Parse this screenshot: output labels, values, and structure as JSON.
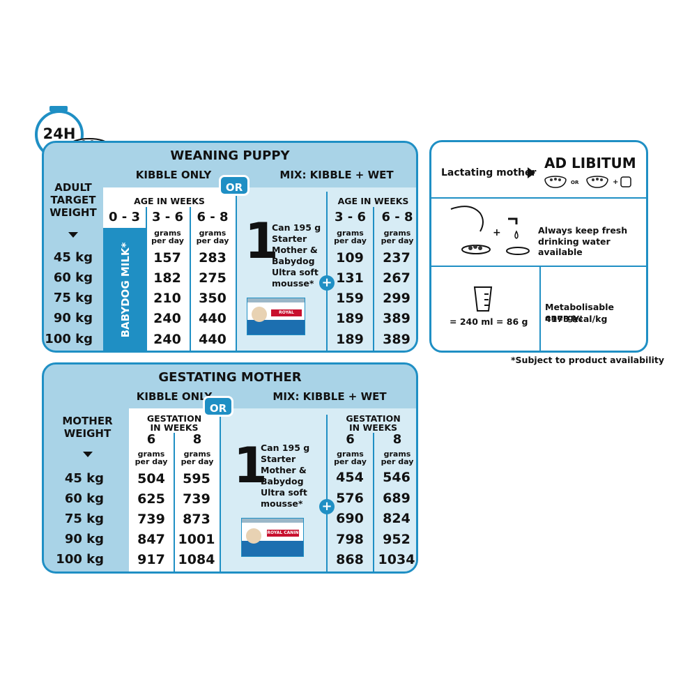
{
  "badge": {
    "label": "24H"
  },
  "weaning": {
    "title": "WEANING PUPPY",
    "kibble_only": "KIBBLE ONLY",
    "or": "OR",
    "mix": "MIX: KIBBLE + WET",
    "side_header": [
      "ADULT",
      "TARGET",
      "WEIGHT"
    ],
    "age_header": "AGE IN WEEKS",
    "age_cols": [
      "0 - 3",
      "3 - 6",
      "6 - 8"
    ],
    "mix_age_cols": [
      "3 - 6",
      "6 - 8"
    ],
    "unit": [
      "grams",
      "per day"
    ],
    "babydog": "BABYDOG MILK*",
    "can_count": "1",
    "can_text": [
      "Can 195 g",
      "Starter",
      "Mother &",
      "Babydog",
      "Ultra soft",
      "mousse*"
    ],
    "plus": "+",
    "rows": [
      {
        "weight": "45 kg",
        "k36": "157",
        "k68": "283",
        "m36": "109",
        "m68": "237"
      },
      {
        "weight": "60 kg",
        "k36": "182",
        "k68": "275",
        "m36": "131",
        "m68": "267"
      },
      {
        "weight": "75 kg",
        "k36": "210",
        "k68": "350",
        "m36": "159",
        "m68": "299"
      },
      {
        "weight": "90 kg",
        "k36": "240",
        "k68": "440",
        "m36": "189",
        "m68": "389"
      },
      {
        "weight": "100 kg",
        "k36": "240",
        "k68": "440",
        "m36": "189",
        "m68": "389"
      }
    ],
    "can_logo": "ROYAL CANIN"
  },
  "gestating": {
    "title": "GESTATING MOTHER",
    "kibble_only": "KIBBLE ONLY",
    "or": "OR",
    "mix": "MIX: KIBBLE + WET",
    "side_header": [
      "MOTHER",
      "WEIGHT"
    ],
    "gest_header": [
      "GESTATION",
      "IN WEEKS"
    ],
    "cols": [
      "6",
      "8"
    ],
    "unit": [
      "grams",
      "per day"
    ],
    "can_count": "1",
    "can_text": [
      "Can 195 g",
      "Starter",
      "Mother &",
      "Babydog",
      "Ultra soft",
      "mousse*"
    ],
    "plus": "+",
    "rows": [
      {
        "weight": "45 kg",
        "k6": "504",
        "k8": "595",
        "m6": "454",
        "m8": "546"
      },
      {
        "weight": "60 kg",
        "k6": "625",
        "k8": "739",
        "m6": "576",
        "m8": "689"
      },
      {
        "weight": "75 kg",
        "k6": "739",
        "k8": "873",
        "m6": "690",
        "m8": "824"
      },
      {
        "weight": "90 kg",
        "k6": "847",
        "k8": "1001",
        "m6": "798",
        "m8": "952"
      },
      {
        "weight": "100 kg",
        "k6": "917",
        "k8": "1084",
        "m6": "868",
        "m8": "1034"
      }
    ],
    "can_logo": "ROYAL CANIN"
  },
  "info": {
    "lactating": "Lactating mother",
    "ad_libitum": "AD LIBITUM",
    "or_small": "OR",
    "water_text": [
      "Always keep fresh",
      "drinking water available"
    ],
    "cup_text": "= 240 ml = 86 g",
    "energy_label": "Metabolisable energy:",
    "energy_value": "4173 kcal/kg"
  },
  "footnote": "*Subject to product availability",
  "colors": {
    "accent": "#1f8fc4",
    "panel": "#a9d3e7",
    "light": "#d7ecf5",
    "brand_red": "#c8102e"
  }
}
